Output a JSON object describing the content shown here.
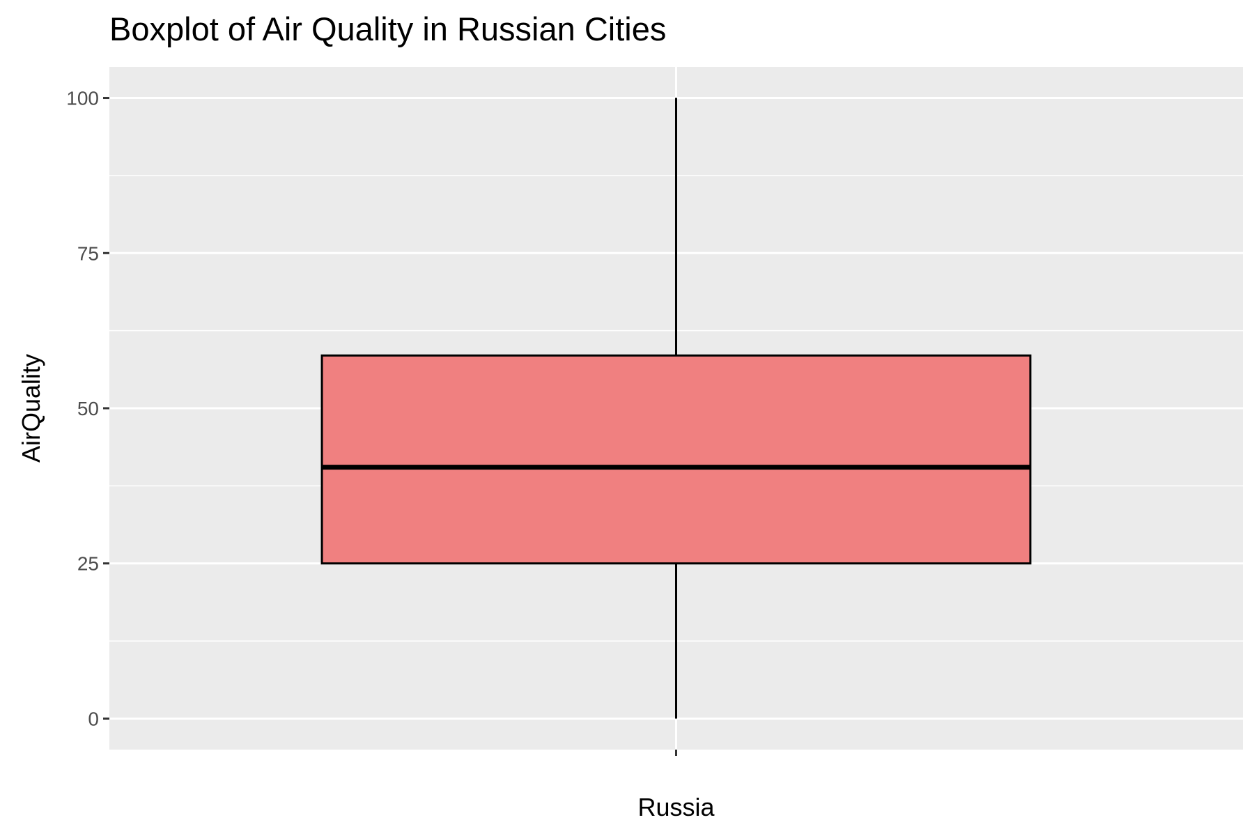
{
  "chart_data": {
    "type": "boxplot",
    "title": "Boxplot of Air Quality in Russian Cities",
    "xlabel": "",
    "ylabel": "AirQuality",
    "categories": [
      "Russia"
    ],
    "boxes": [
      {
        "category": "Russia",
        "min": 0,
        "q1": 25,
        "median": 40.5,
        "q3": 58.5,
        "max": 100
      }
    ],
    "y_ticks": [
      0,
      25,
      50,
      75,
      100
    ],
    "ylim": [
      -5,
      105
    ],
    "grid": true,
    "legend": "none",
    "colors": {
      "box_fill": "#f08080",
      "box_stroke": "#000000",
      "panel_background": "#ebebeb",
      "grid_major": "#ffffff",
      "grid_minor": "#ffffff"
    }
  }
}
